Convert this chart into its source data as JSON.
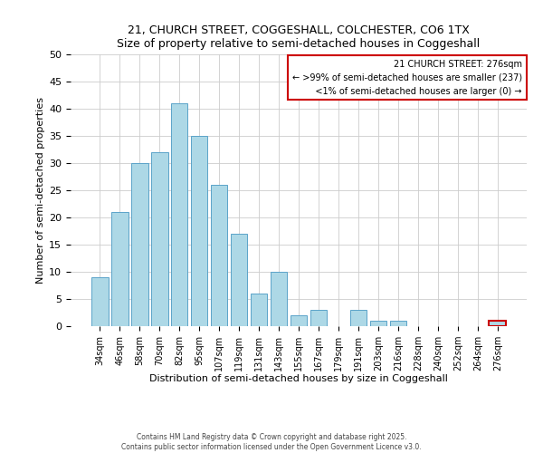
{
  "title1": "21, CHURCH STREET, COGGESHALL, COLCHESTER, CO6 1TX",
  "title2": "Size of property relative to semi-detached houses in Coggeshall",
  "xlabel": "Distribution of semi-detached houses by size in Coggeshall",
  "ylabel": "Number of semi-detached properties",
  "bar_labels": [
    "34sqm",
    "46sqm",
    "58sqm",
    "70sqm",
    "82sqm",
    "95sqm",
    "107sqm",
    "119sqm",
    "131sqm",
    "143sqm",
    "155sqm",
    "167sqm",
    "179sqm",
    "191sqm",
    "203sqm",
    "216sqm",
    "228sqm",
    "240sqm",
    "252sqm",
    "264sqm",
    "276sqm"
  ],
  "bar_values": [
    9,
    21,
    30,
    32,
    41,
    35,
    26,
    17,
    6,
    10,
    2,
    3,
    0,
    3,
    1,
    1,
    0,
    0,
    0,
    0,
    1
  ],
  "bar_color": "#add8e6",
  "bar_edge_color": "#5ba3c9",
  "ylim": [
    0,
    50
  ],
  "yticks": [
    0,
    5,
    10,
    15,
    20,
    25,
    30,
    35,
    40,
    45,
    50
  ],
  "grid_color": "#cccccc",
  "legend_title": "21 CHURCH STREET: 276sqm",
  "legend_line1": "← >99% of semi-detached houses are smaller (237)",
  "legend_line2": "   <1% of semi-detached houses are larger (0) →",
  "legend_box_color": "#cc0000",
  "annotation_bar_index": 20,
  "footer1": "Contains HM Land Registry data © Crown copyright and database right 2025.",
  "footer2": "Contains public sector information licensed under the Open Government Licence v3.0."
}
